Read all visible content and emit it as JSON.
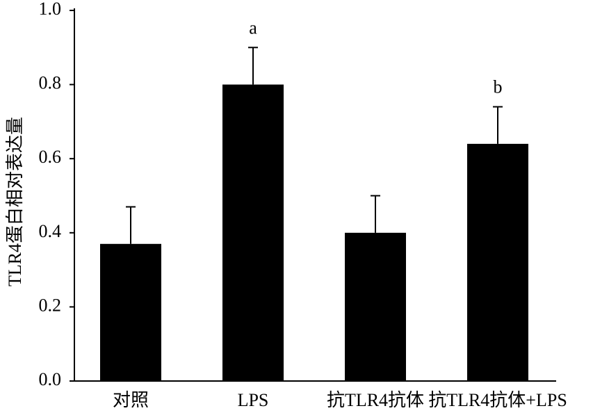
{
  "chart_data": {
    "type": "bar",
    "y_label": "TLR4蛋白相对表达量",
    "categories": [
      "对照",
      "LPS",
      "抗TLR4抗体",
      "抗TLR4抗体+LPS"
    ],
    "values": [
      0.37,
      0.8,
      0.4,
      0.64
    ],
    "errors": [
      0.1,
      0.1,
      0.1,
      0.1
    ],
    "annotations": [
      null,
      "a",
      null,
      "b"
    ],
    "color": "#000000",
    "ylim": [
      0,
      1
    ],
    "yticks": [
      {
        "value": 0,
        "label": "0.0"
      },
      0.2,
      0.4,
      0.6,
      0.8,
      {
        "value": 1,
        "label": "1.0"
      }
    ],
    "grid": false
  }
}
